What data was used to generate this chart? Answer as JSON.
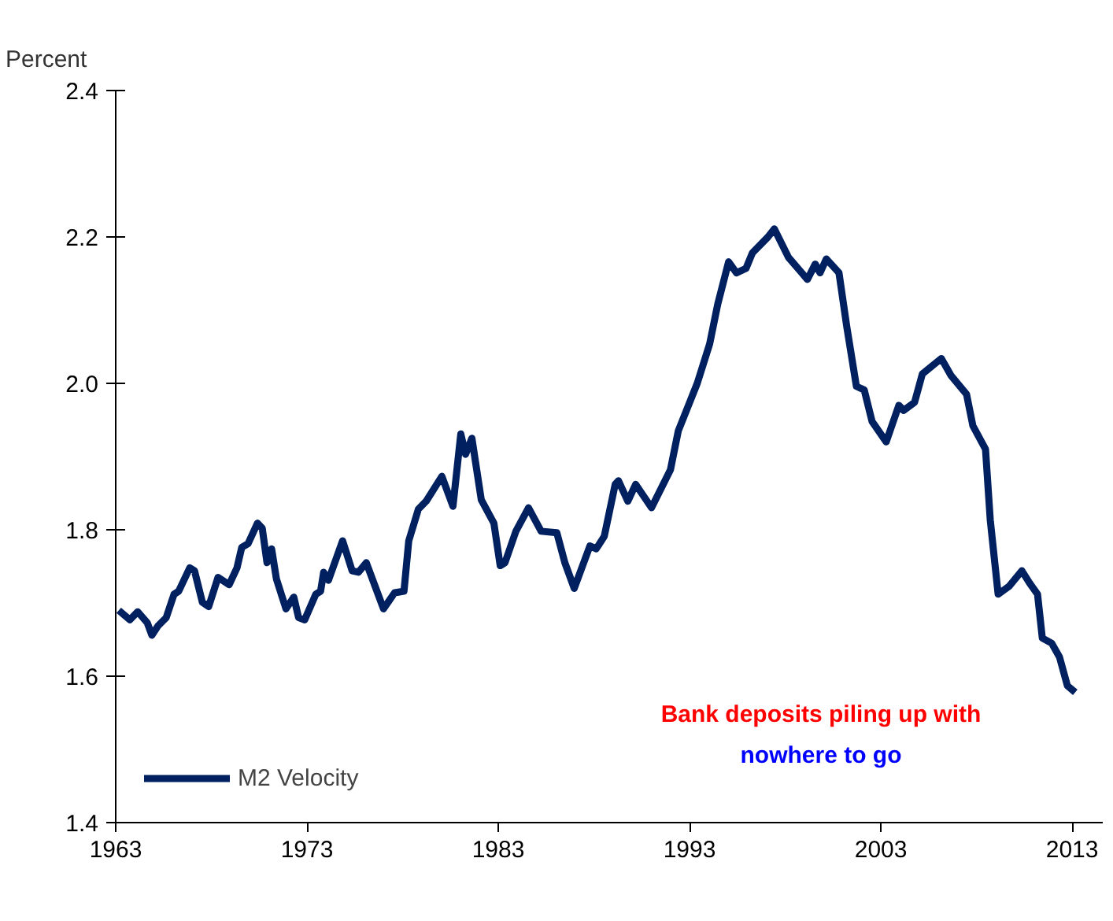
{
  "chart_data": {
    "type": "line",
    "ylabel": "Percent",
    "x": [
      1963.16,
      1963.74,
      1964.15,
      1964.65,
      1964.89,
      1965.22,
      1965.64,
      1966.05,
      1966.29,
      1966.87,
      1967.12,
      1967.53,
      1967.86,
      1968.35,
      1968.93,
      1969.34,
      1969.59,
      1969.92,
      1970.41,
      1970.66,
      1970.91,
      1971.15,
      1971.4,
      1971.9,
      1972.31,
      1972.56,
      1972.88,
      1973.46,
      1973.71,
      1973.87,
      1974.12,
      1974.86,
      1975.36,
      1975.69,
      1976.1,
      1977.0,
      1977.58,
      1978.07,
      1978.32,
      1978.82,
      1979.23,
      1980.05,
      1980.63,
      1981.04,
      1981.29,
      1981.62,
      1982.11,
      1982.77,
      1983.1,
      1983.35,
      1983.92,
      1984.58,
      1985.24,
      1986.06,
      1986.48,
      1986.97,
      1987.79,
      1988.12,
      1988.54,
      1989.11,
      1989.28,
      1989.77,
      1990.18,
      1991.01,
      1992.0,
      1992.41,
      1993.4,
      1994.05,
      1994.47,
      1995.04,
      1995.45,
      1995.95,
      1996.28,
      1997.1,
      1997.43,
      1998.17,
      1999.16,
      1999.57,
      1999.82,
      2000.15,
      2000.81,
      2001.22,
      2001.72,
      2002.13,
      2002.54,
      2003.28,
      2003.94,
      2004.19,
      2004.76,
      2005.17,
      2006.16,
      2006.66,
      2007.48,
      2007.81,
      2008.47,
      2008.72,
      2009.13,
      2009.71,
      2010.37,
      2010.78,
      2011.19,
      2011.44,
      2011.93,
      2012.34,
      2012.75,
      2013.16
    ],
    "series": [
      {
        "name": "M2 Velocity",
        "color": "#002060",
        "values": [
          1.69,
          1.677,
          1.688,
          1.673,
          1.656,
          1.669,
          1.68,
          1.712,
          1.716,
          1.748,
          1.744,
          1.701,
          1.695,
          1.735,
          1.725,
          1.748,
          1.776,
          1.781,
          1.809,
          1.802,
          1.755,
          1.774,
          1.733,
          1.692,
          1.708,
          1.68,
          1.677,
          1.712,
          1.716,
          1.742,
          1.731,
          1.785,
          1.744,
          1.742,
          1.755,
          1.692,
          1.714,
          1.716,
          1.785,
          1.828,
          1.839,
          1.873,
          1.832,
          1.931,
          1.903,
          1.925,
          1.841,
          1.809,
          1.751,
          1.755,
          1.798,
          1.83,
          1.798,
          1.796,
          1.755,
          1.72,
          1.778,
          1.774,
          1.791,
          1.862,
          1.867,
          1.839,
          1.862,
          1.83,
          1.882,
          1.935,
          2.0,
          2.054,
          2.108,
          2.166,
          2.151,
          2.157,
          2.178,
          2.2,
          2.211,
          2.172,
          2.142,
          2.163,
          2.151,
          2.17,
          2.151,
          2.077,
          1.996,
          1.991,
          1.948,
          1.92,
          1.97,
          1.963,
          1.974,
          2.013,
          2.034,
          2.011,
          1.985,
          1.942,
          1.91,
          1.813,
          1.712,
          1.723,
          1.744,
          1.727,
          1.712,
          1.652,
          1.645,
          1.626,
          1.587,
          1.578
        ]
      }
    ],
    "xlim": [
      1963,
      2014.6
    ],
    "ylim": [
      1.4,
      2.4
    ],
    "xticks": [
      1963,
      1973,
      1983,
      1993,
      2003,
      2013
    ],
    "yticks": [
      {
        "value": 1.4,
        "label": "1.4"
      },
      {
        "value": 1.6,
        "label": "1.6"
      },
      {
        "value": 1.8,
        "label": "1.8"
      },
      {
        "value": 2.0,
        "label": "2.0"
      },
      {
        "value": 2.2,
        "label": "2.2"
      },
      {
        "value": 2.4,
        "label": "2.4"
      }
    ],
    "grid": false,
    "legend": "bottom left",
    "marker": "none",
    "line_style": "solid",
    "annotations": [
      "Bank deposits piling up with",
      "nowhere to go"
    ]
  }
}
